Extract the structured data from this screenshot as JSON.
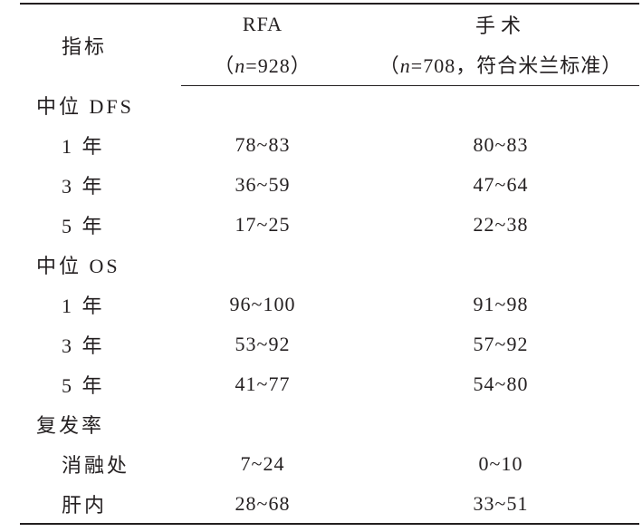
{
  "table": {
    "header": {
      "indicator": "指标",
      "rfa": {
        "title": "RFA",
        "sub_open": "（",
        "sub_var": "n",
        "sub_rest": "=928）"
      },
      "surgery": {
        "title": "手术",
        "sub_open": "（",
        "sub_var": "n",
        "sub_rest": "=708，符合米兰标准）"
      }
    },
    "rows": [
      {
        "type": "group",
        "label": "中位 DFS"
      },
      {
        "type": "item",
        "label": "1 年",
        "rfa": "78~83",
        "surgery": "80~83"
      },
      {
        "type": "item",
        "label": "3 年",
        "rfa": "36~59",
        "surgery": "47~64"
      },
      {
        "type": "item",
        "label": "5 年",
        "rfa": "17~25",
        "surgery": "22~38"
      },
      {
        "type": "group",
        "label": "中位 OS"
      },
      {
        "type": "item",
        "label": "1 年",
        "rfa": "96~100",
        "surgery": "91~98"
      },
      {
        "type": "item",
        "label": "3 年",
        "rfa": "53~92",
        "surgery": "57~92"
      },
      {
        "type": "item",
        "label": "5 年",
        "rfa": "41~77",
        "surgery": "54~80"
      },
      {
        "type": "group",
        "label": "复发率"
      },
      {
        "type": "item",
        "label": "消融处",
        "rfa": "7~24",
        "surgery": "0~10"
      },
      {
        "type": "item",
        "label": "肝内",
        "rfa": "28~68",
        "surgery": "33~51"
      }
    ]
  }
}
